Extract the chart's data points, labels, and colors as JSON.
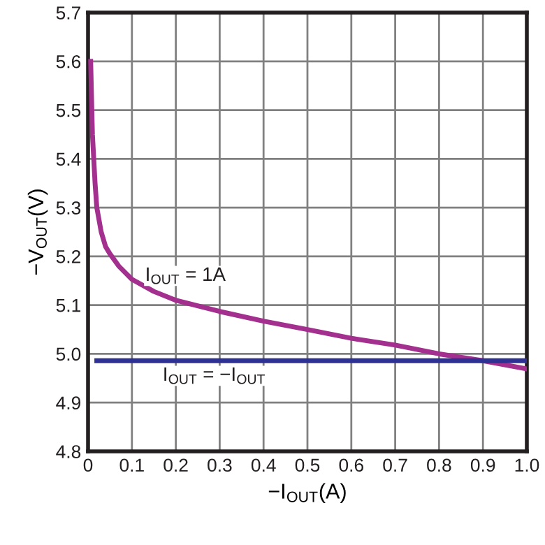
{
  "chart_data": {
    "type": "line",
    "xlabel": "−I$_{OUT}$(A)",
    "ylabel": "−V$_{OUT}$(V)",
    "series": [
      {
        "color": "#a3308f",
        "x": [
          0.006,
          0.01,
          0.016,
          0.02,
          0.03,
          0.04,
          0.05,
          0.07,
          0.1,
          0.15,
          0.2,
          0.3,
          0.4,
          0.5,
          0.6,
          0.7,
          0.8,
          0.9,
          1.0
        ],
        "values": [
          5.6,
          5.45,
          5.35,
          5.3,
          5.25,
          5.22,
          5.205,
          5.18,
          5.153,
          5.128,
          5.11,
          5.087,
          5.067,
          5.05,
          5.032,
          5.018,
          5.0,
          4.986,
          4.969
        ]
      },
      {
        "color": "#2e3192",
        "x": [
          0.02,
          1.0
        ],
        "values": [
          4.986,
          4.986
        ]
      }
    ],
    "annotations": [
      "I$_{OUT}$ = 1A",
      "I$_{OUT}$ = −I$_{OUT}$"
    ],
    "xlim": [
      0,
      1.0
    ],
    "ylim": [
      4.8,
      5.7
    ],
    "xticks": [
      0,
      0.1,
      0.2,
      0.3,
      0.4,
      0.5,
      0.6,
      0.7,
      0.8,
      0.9,
      {
        "value": 1,
        "label": "1.0"
      }
    ],
    "yticks": [
      4.8,
      4.9,
      {
        "value": 5,
        "label": "5.0"
      },
      5.1,
      5.2,
      5.3,
      5.4,
      5.5,
      5.6,
      5.7
    ],
    "grid": true,
    "legend": false
  }
}
